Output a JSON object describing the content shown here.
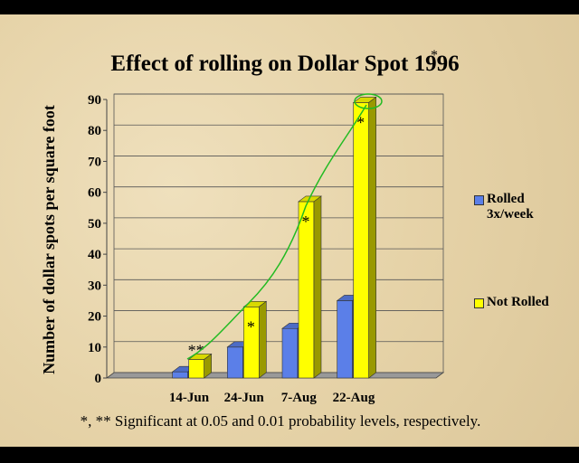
{
  "chart_data": {
    "type": "bar3d",
    "title": "Effect of rolling on Dollar Spot  1996",
    "title_mark": "*",
    "y_label": "Number of  dollar spots  per square foot",
    "footnote": "*, ** Significant at 0.05 and 0.01 probability levels, respectively.",
    "categories": [
      null,
      "14-Jun",
      "24-Jun",
      "7-Aug",
      "22-Aug",
      null
    ],
    "series": [
      {
        "name": "Rolled 3x/week",
        "color": "#5b7fe8",
        "values": [
          null,
          2,
          10,
          16,
          25,
          null
        ]
      },
      {
        "name": "Not Rolled",
        "color": "#ffff00",
        "values": [
          null,
          6,
          23,
          57,
          89,
          null
        ],
        "significance": [
          null,
          "**",
          "*",
          "*",
          "*",
          null
        ]
      }
    ],
    "ylim": [
      0,
      90
    ],
    "yticks": [
      0,
      10,
      20,
      30,
      40,
      50,
      60,
      70,
      80,
      90
    ],
    "grid": true,
    "legend": "right"
  }
}
